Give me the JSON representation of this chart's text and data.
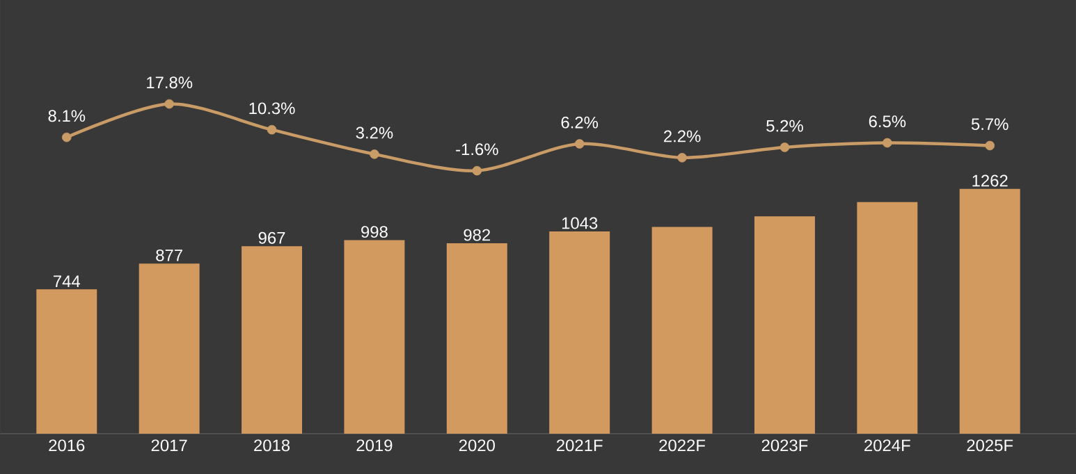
{
  "chart_data": {
    "type": "bar",
    "categories": [
      "2016",
      "2017",
      "2018",
      "2019",
      "2020",
      "2021F",
      "2022F",
      "2023F",
      "2024F",
      "2025F"
    ],
    "series": [
      {
        "color": "#d29a5e",
        "values": [
          744,
          877,
          967,
          998,
          982,
          1043,
          1066,
          1121,
          1194,
          1262
        ],
        "value_labels": [
          "744",
          "877",
          "967",
          "998",
          "982",
          "1043",
          null,
          null,
          null,
          "1262"
        ]
      },
      {
        "type": "line",
        "axis": "y2",
        "color": "#c99b66",
        "values": [
          8.1,
          17.8,
          10.3,
          3.2,
          -1.6,
          6.2,
          2.2,
          5.2,
          6.5,
          5.7
        ],
        "value_labels": [
          "8.1%",
          "17.8%",
          "10.3%",
          "3.2%",
          "-1.6%",
          "6.2%",
          "2.2%",
          "5.2%",
          "6.5%",
          "5.7%"
        ]
      }
    ],
    "ylim": [
      0,
      2236
    ],
    "y2lim": [
      -78,
      48
    ],
    "tick_labels": "x",
    "marker": "circle",
    "line_style": "solid",
    "grid": false
  }
}
